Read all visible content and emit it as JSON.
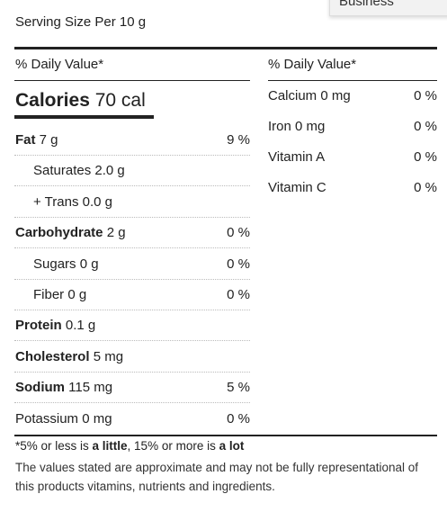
{
  "menu_item": "Business",
  "serving_size": "Serving Size Per 10 g",
  "left": {
    "header": "% Daily Value*",
    "calories": {
      "label": "Calories",
      "value": "70 cal"
    },
    "nutrients": [
      {
        "name": "Fat",
        "amount": "7 g",
        "dv": "9 %",
        "bold": true,
        "indent": false
      },
      {
        "name": "Saturates",
        "amount": "2.0 g",
        "bold": false,
        "indent": true
      },
      {
        "name": "+ Trans",
        "amount": "0.0 g",
        "bold": false,
        "indent": true
      },
      {
        "name": "Carbohydrate",
        "amount": "2 g",
        "dv": "0 %",
        "bold": true,
        "indent": false
      },
      {
        "name": "Sugars",
        "amount": "0 g",
        "dv": "0 %",
        "bold": false,
        "indent": true
      },
      {
        "name": "Fiber",
        "amount": "0 g",
        "dv": "0 %",
        "bold": false,
        "indent": true
      },
      {
        "name": "Protein",
        "amount": "0.1 g",
        "bold": true,
        "indent": false
      },
      {
        "name": "Cholesterol",
        "amount": "5 mg",
        "bold": true,
        "indent": false
      },
      {
        "name": "Sodium",
        "amount": "115 mg",
        "dv": "5 %",
        "bold": true,
        "indent": false
      },
      {
        "name": "Potassium",
        "amount": "0 mg",
        "dv": "0 %",
        "bold": false,
        "indent": false
      }
    ]
  },
  "right": {
    "header": "% Daily Value*",
    "vitamins": [
      {
        "name": "Calcium",
        "amount": "0 mg",
        "dv": "0 %"
      },
      {
        "name": "Iron",
        "amount": "0 mg",
        "dv": "0 %"
      },
      {
        "name": "Vitamin A",
        "dv": "0 %"
      },
      {
        "name": "Vitamin C",
        "dv": "0 %"
      }
    ]
  },
  "footnote": {
    "segments": [
      {
        "text": "*5% or less is ",
        "bold": false
      },
      {
        "text": "a little",
        "bold": true
      },
      {
        "text": ", 15% or more is ",
        "bold": false
      },
      {
        "text": "a lot",
        "bold": true
      }
    ],
    "note": "The values stated are approximate and may not be fully representational of this products vitamins, nutrients and ingredients."
  }
}
